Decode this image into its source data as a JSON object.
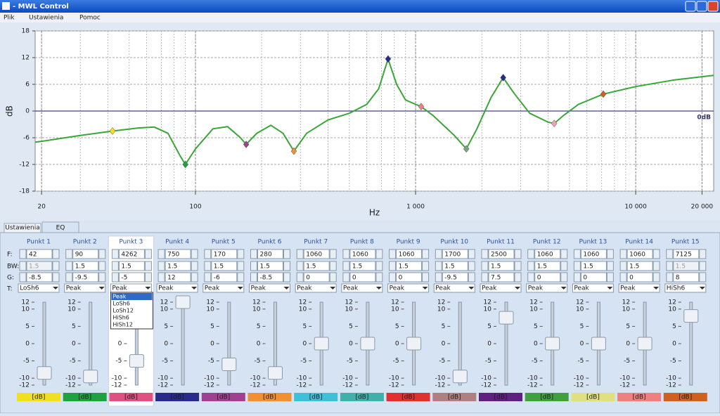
{
  "window": {
    "title": "- MWL Control"
  },
  "menu": [
    "Plik",
    "Ustawienia",
    "Pomoc"
  ],
  "chart": {
    "type": "line",
    "ylabel": "dB",
    "xlabel": "Hz",
    "zero_label": "0dB",
    "log_x": true,
    "grid": true,
    "curve_color": "#3aa63a",
    "xlim": [
      18.7,
      22600
    ],
    "ylim": [
      -18,
      18
    ],
    "yticks": [
      -18,
      -12,
      -6,
      0,
      6,
      12,
      18
    ],
    "xticks": [
      20,
      100,
      {
        "value": 1000,
        "label": "1 000"
      },
      {
        "value": 10000,
        "label": "10 000"
      },
      {
        "value": 20000,
        "label": "20 000"
      }
    ],
    "curve": {
      "x": [
        18.7,
        20,
        30,
        42,
        55,
        65,
        75,
        85,
        90,
        100,
        120,
        140,
        160,
        170,
        190,
        220,
        250,
        280,
        320,
        400,
        500,
        600,
        680,
        750,
        820,
        900,
        1000,
        1060,
        1200,
        1500,
        1700,
        1900,
        2200,
        2500,
        2800,
        3300,
        4000,
        4262,
        4700,
        5500,
        7125,
        10000,
        15000,
        22600
      ],
      "y": [
        -7,
        -6.8,
        -5.5,
        -4.5,
        -3.8,
        -3.6,
        -5,
        -10,
        -12,
        -8.5,
        -4,
        -3.5,
        -6,
        -7.5,
        -5,
        -3.2,
        -5,
        -9,
        -5,
        -2,
        -0.5,
        1.5,
        5,
        11.7,
        6,
        2.5,
        1.5,
        1,
        -1,
        -5.5,
        -8.5,
        -4,
        3,
        7.5,
        4,
        -0.5,
        -2.5,
        -2.8,
        -1,
        1.5,
        3.8,
        5.5,
        7,
        8
      ]
    },
    "markers": [
      {
        "x": 42,
        "y": -4.5,
        "color": "#f0e020"
      },
      {
        "x": 90,
        "y": -12,
        "color": "#20a040"
      },
      {
        "x": 170,
        "y": -7.5,
        "color": "#a04090"
      },
      {
        "x": 280,
        "y": -9,
        "color": "#f09030"
      },
      {
        "x": 750,
        "y": 11.7,
        "color": "#2a2a8a"
      },
      {
        "x": 1060,
        "y": 1,
        "color": "#f08080"
      },
      {
        "x": 1700,
        "y": -8.5,
        "color": "#80a080"
      },
      {
        "x": 2500,
        "y": 7.5,
        "color": "#2a2a8a"
      },
      {
        "x": 4262,
        "y": -2.8,
        "color": "#f0a0b0"
      },
      {
        "x": 7125,
        "y": 3.8,
        "color": "#d06020"
      }
    ]
  },
  "tabs": [
    "Ustawienia",
    "EQ"
  ],
  "row_labels": [
    "F:",
    "BW:",
    "G:",
    "T:"
  ],
  "slider_ticks": [
    12,
    10,
    5,
    0,
    -5,
    -10,
    -12
  ],
  "unit": "[dB]",
  "selected_point": 2,
  "dropdown": {
    "point": 2,
    "highlighted": 0,
    "options": [
      "Peak",
      "LoSh6",
      "LoSh12",
      "HiSh6",
      "HiSh12"
    ]
  },
  "points": [
    {
      "name": "Punkt 1",
      "f": 42,
      "bw": 1.5,
      "bw_disabled": true,
      "g": -8.5,
      "t": "LoSh6",
      "color": "#f0e020"
    },
    {
      "name": "Punkt 2",
      "f": 90,
      "bw": 1.5,
      "bw_disabled": false,
      "g": -9.5,
      "t": "Peak",
      "color": "#20a040"
    },
    {
      "name": "Punkt 3",
      "f": 4262,
      "bw": 1.5,
      "bw_disabled": false,
      "g": -5,
      "t": "Peak",
      "color": "#e05080"
    },
    {
      "name": "Punkt 4",
      "f": 750,
      "bw": 1.5,
      "bw_disabled": false,
      "g": 12,
      "t": "Peak",
      "color": "#2a2a8a"
    },
    {
      "name": "Punkt 5",
      "f": 170,
      "bw": 1.5,
      "bw_disabled": false,
      "g": -6,
      "t": "Peak",
      "color": "#a04090"
    },
    {
      "name": "Punkt 6",
      "f": 280,
      "bw": 1.5,
      "bw_disabled": false,
      "g": -8.5,
      "t": "Peak",
      "color": "#f09030"
    },
    {
      "name": "Punkt 7",
      "f": 1060,
      "bw": 1.5,
      "bw_disabled": false,
      "g": 0,
      "t": "Peak",
      "color": "#40c0d8"
    },
    {
      "name": "Punkt 8",
      "f": 1060,
      "bw": 1.5,
      "bw_disabled": false,
      "g": 0,
      "t": "Peak",
      "color": "#40b0a8"
    },
    {
      "name": "Punkt 9",
      "f": 1060,
      "bw": 1.5,
      "bw_disabled": false,
      "g": 0,
      "t": "Peak",
      "color": "#e03030"
    },
    {
      "name": "Punkt 10",
      "f": 1700,
      "bw": 1.5,
      "bw_disabled": false,
      "g": -9.5,
      "t": "Peak",
      "color": "#b08080"
    },
    {
      "name": "Punkt 11",
      "f": 2500,
      "bw": 1.5,
      "bw_disabled": false,
      "g": 7.5,
      "t": "Peak",
      "color": "#602080"
    },
    {
      "name": "Punkt 12",
      "f": 1060,
      "bw": 1.5,
      "bw_disabled": false,
      "g": 0,
      "t": "Peak",
      "color": "#40a040"
    },
    {
      "name": "Punkt 13",
      "f": 1060,
      "bw": 1.5,
      "bw_disabled": false,
      "g": 0,
      "t": "Peak",
      "color": "#e0e080"
    },
    {
      "name": "Punkt 14",
      "f": 1060,
      "bw": 1.5,
      "bw_disabled": false,
      "g": 0,
      "t": "Peak",
      "color": "#f08080"
    },
    {
      "name": "Punkt 15",
      "f": 7125,
      "bw": 1.5,
      "bw_disabled": true,
      "g": 8,
      "t": "HiSh6",
      "color": "#d06020"
    }
  ]
}
